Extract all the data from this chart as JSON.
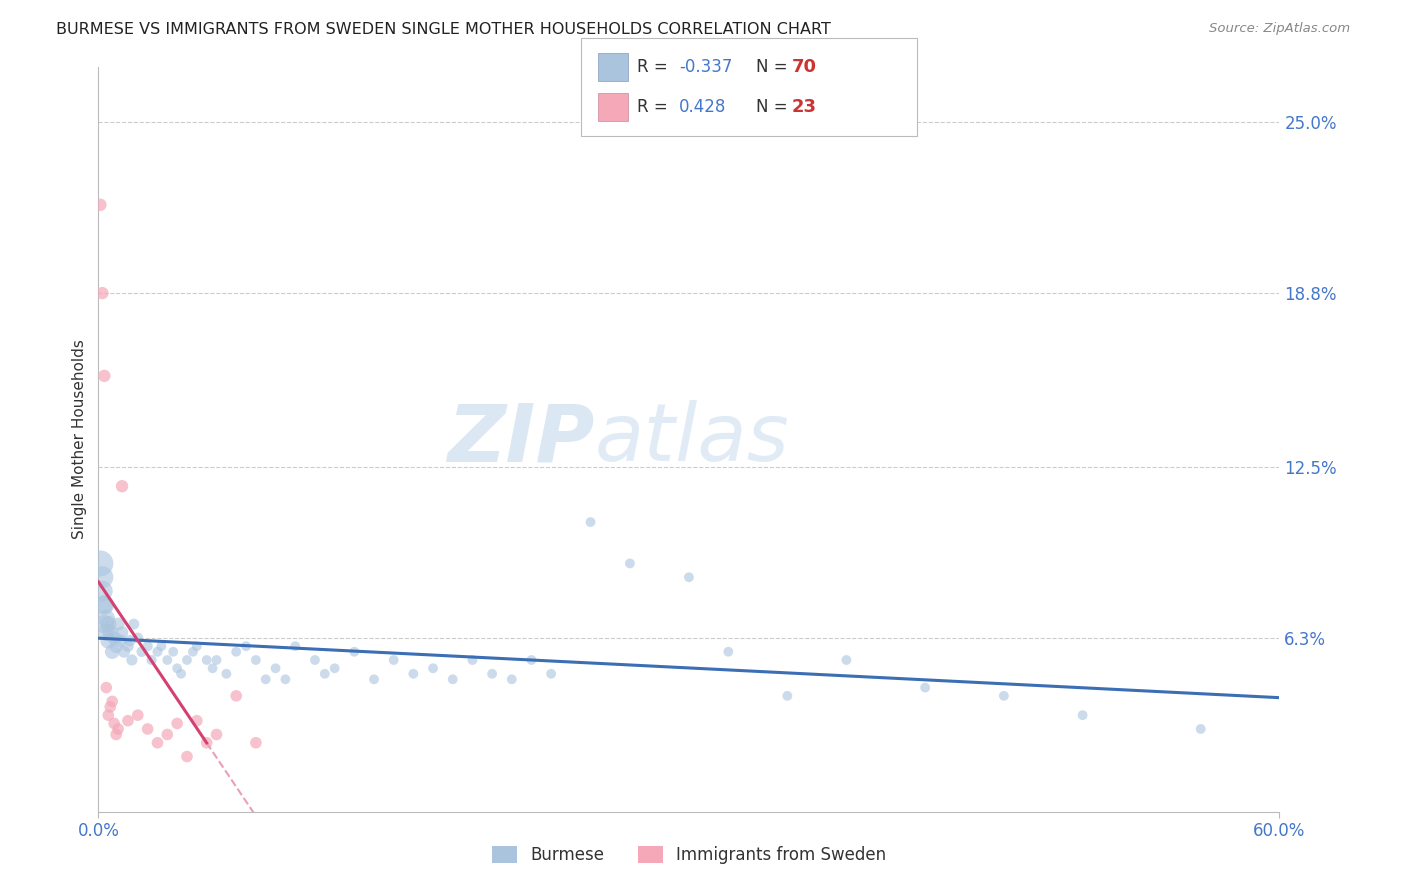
{
  "title": "BURMESE VS IMMIGRANTS FROM SWEDEN SINGLE MOTHER HOUSEHOLDS CORRELATION CHART",
  "source": "Source: ZipAtlas.com",
  "ylabel_label": "Single Mother Households",
  "watermark_zip": "ZIP",
  "watermark_atlas": "atlas",
  "burmese_color": "#aac4de",
  "sweden_color": "#f4a8b8",
  "trend_burmese_color": "#3b6eb5",
  "trend_sweden_color": "#d44070",
  "trend_sweden_dash_color": "#e8a0b4",
  "xmin": 0.0,
  "xmax": 0.6,
  "ymin": 0.0,
  "ymax": 0.27,
  "ytick_vals": [
    0.063,
    0.125,
    0.188,
    0.25
  ],
  "ytick_labels": [
    "6.3%",
    "12.5%",
    "18.8%",
    "25.0%"
  ],
  "xtick_vals": [
    0.0,
    0.6
  ],
  "xtick_labels": [
    "0.0%",
    "60.0%"
  ],
  "legend_box_color": "#aaaaaa",
  "R1": "-0.337",
  "N1": "70",
  "R2": "0.428",
  "N2": "23",
  "r_label_color": "#333333",
  "r_val1_color": "#4477cc",
  "r_val2_color": "#4477cc",
  "n_label_color": "#333333",
  "n_val_color": "#cc3333",
  "sq1_color": "#aac4de",
  "sq2_color": "#f4a8b8",
  "burmese_x": [
    0.001,
    0.002,
    0.002,
    0.003,
    0.003,
    0.003,
    0.004,
    0.004,
    0.005,
    0.005,
    0.006,
    0.007,
    0.008,
    0.009,
    0.01,
    0.011,
    0.012,
    0.013,
    0.015,
    0.016,
    0.017,
    0.018,
    0.02,
    0.022,
    0.025,
    0.027,
    0.03,
    0.032,
    0.035,
    0.038,
    0.04,
    0.042,
    0.045,
    0.048,
    0.05,
    0.055,
    0.058,
    0.06,
    0.065,
    0.07,
    0.075,
    0.08,
    0.085,
    0.09,
    0.095,
    0.1,
    0.11,
    0.115,
    0.12,
    0.13,
    0.14,
    0.15,
    0.16,
    0.17,
    0.18,
    0.19,
    0.2,
    0.21,
    0.22,
    0.23,
    0.25,
    0.27,
    0.3,
    0.32,
    0.35,
    0.38,
    0.42,
    0.46,
    0.5,
    0.56
  ],
  "burmese_y": [
    0.09,
    0.085,
    0.08,
    0.075,
    0.068,
    0.075,
    0.07,
    0.065,
    0.068,
    0.062,
    0.065,
    0.058,
    0.063,
    0.06,
    0.068,
    0.062,
    0.065,
    0.058,
    0.06,
    0.062,
    0.055,
    0.068,
    0.063,
    0.058,
    0.06,
    0.055,
    0.058,
    0.06,
    0.055,
    0.058,
    0.052,
    0.05,
    0.055,
    0.058,
    0.06,
    0.055,
    0.052,
    0.055,
    0.05,
    0.058,
    0.06,
    0.055,
    0.048,
    0.052,
    0.048,
    0.06,
    0.055,
    0.05,
    0.052,
    0.058,
    0.048,
    0.055,
    0.05,
    0.052,
    0.048,
    0.055,
    0.05,
    0.048,
    0.055,
    0.05,
    0.105,
    0.09,
    0.085,
    0.058,
    0.042,
    0.055,
    0.045,
    0.042,
    0.035,
    0.03
  ],
  "burmese_sizes": [
    350,
    250,
    220,
    200,
    180,
    170,
    160,
    150,
    140,
    130,
    120,
    110,
    100,
    95,
    90,
    85,
    80,
    75,
    70,
    68,
    65,
    62,
    60,
    58,
    55,
    53,
    52,
    50,
    50,
    50,
    50,
    50,
    50,
    50,
    50,
    50,
    50,
    50,
    50,
    50,
    50,
    50,
    50,
    50,
    50,
    50,
    50,
    50,
    50,
    50,
    50,
    50,
    50,
    50,
    50,
    50,
    50,
    50,
    50,
    50,
    50,
    50,
    50,
    50,
    50,
    50,
    50,
    50,
    50,
    50
  ],
  "sweden_x": [
    0.001,
    0.002,
    0.003,
    0.004,
    0.005,
    0.006,
    0.007,
    0.008,
    0.009,
    0.01,
    0.012,
    0.015,
    0.02,
    0.025,
    0.03,
    0.035,
    0.04,
    0.045,
    0.05,
    0.055,
    0.06,
    0.07,
    0.08
  ],
  "sweden_y": [
    0.22,
    0.188,
    0.158,
    0.045,
    0.035,
    0.038,
    0.04,
    0.032,
    0.028,
    0.03,
    0.118,
    0.033,
    0.035,
    0.03,
    0.025,
    0.028,
    0.032,
    0.02,
    0.033,
    0.025,
    0.028,
    0.042,
    0.025
  ],
  "sweden_sizes": [
    80,
    80,
    80,
    70,
    70,
    70,
    70,
    70,
    70,
    70,
    80,
    70,
    70,
    70,
    70,
    70,
    70,
    70,
    70,
    70,
    70,
    70,
    70
  ]
}
